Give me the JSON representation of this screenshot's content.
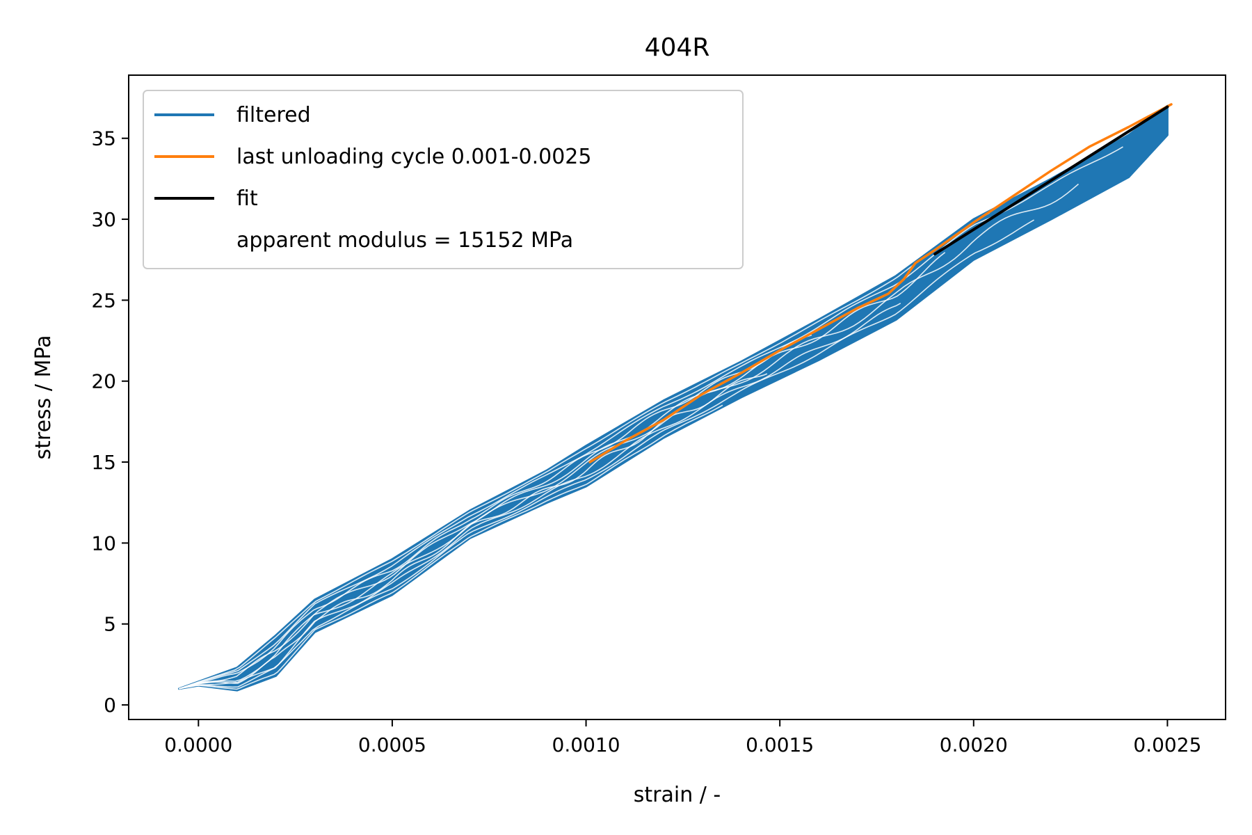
{
  "chart_data": {
    "type": "line",
    "title": "404R",
    "xlabel": "strain / -",
    "ylabel": "stress / MPa",
    "xlim": [
      -0.00018,
      0.00265
    ],
    "ylim": [
      -0.9,
      38.9
    ],
    "xticks": [
      0.0,
      0.0005,
      0.001,
      0.0015,
      0.002,
      0.0025
    ],
    "xtick_labels": [
      "0.0000",
      "0.0005",
      "0.0010",
      "0.0015",
      "0.0020",
      "0.0025"
    ],
    "yticks": [
      0,
      5,
      10,
      15,
      20,
      25,
      30,
      35
    ],
    "ytick_labels": [
      "0",
      "5",
      "10",
      "15",
      "20",
      "25",
      "30",
      "35"
    ],
    "grid": false,
    "legend_position": "upper-left",
    "series": [
      {
        "name": "filtered",
        "color": "#1f77b4",
        "role": "hysteresis-band",
        "band_upper": [
          [
            -5e-05,
            1.0
          ],
          [
            0.0001,
            2.3
          ],
          [
            0.0002,
            4.3
          ],
          [
            0.0003,
            6.5
          ],
          [
            0.0005,
            9.0
          ],
          [
            0.0007,
            12.0
          ],
          [
            0.0009,
            14.5
          ],
          [
            0.001,
            16.0
          ],
          [
            0.0012,
            18.8
          ],
          [
            0.0014,
            21.2
          ],
          [
            0.0016,
            23.8
          ],
          [
            0.0018,
            26.5
          ],
          [
            0.002,
            30.0
          ],
          [
            0.0022,
            32.5
          ],
          [
            0.0024,
            35.2
          ],
          [
            0.0025,
            37.0
          ]
        ],
        "band_lower": [
          [
            -5e-05,
            1.0
          ],
          [
            0.0,
            1.2
          ],
          [
            0.0001,
            0.9
          ],
          [
            0.0002,
            1.8
          ],
          [
            0.0003,
            4.5
          ],
          [
            0.0005,
            6.8
          ],
          [
            0.0007,
            10.3
          ],
          [
            0.0009,
            12.5
          ],
          [
            0.001,
            13.5
          ],
          [
            0.0012,
            16.5
          ],
          [
            0.0014,
            19.0
          ],
          [
            0.0016,
            21.3
          ],
          [
            0.0018,
            23.8
          ],
          [
            0.002,
            27.5
          ],
          [
            0.0022,
            30.0
          ],
          [
            0.0024,
            32.6
          ],
          [
            0.0025,
            35.2
          ]
        ]
      },
      {
        "name": "last unloading cycle 0.001-0.0025",
        "color": "#ff7f0e",
        "x": [
          0.00101,
          0.0011,
          0.0012,
          0.0013,
          0.0014,
          0.0015,
          0.0016,
          0.0017,
          0.00178,
          0.00182,
          0.00185,
          0.0019,
          0.002,
          0.0021,
          0.0022,
          0.0023,
          0.0024,
          0.00251
        ],
        "y": [
          15.0,
          16.3,
          17.6,
          19.2,
          20.5,
          21.9,
          23.2,
          24.5,
          25.4,
          26.3,
          27.3,
          28.1,
          29.8,
          31.4,
          33.0,
          34.5,
          35.7,
          37.1
        ]
      },
      {
        "name": "fit",
        "color": "#000000",
        "x": [
          0.0019,
          0.0025
        ],
        "y": [
          27.85,
          36.94
        ]
      },
      {
        "name": "apparent modulus = 15152 MPa",
        "color": "none"
      }
    ]
  }
}
